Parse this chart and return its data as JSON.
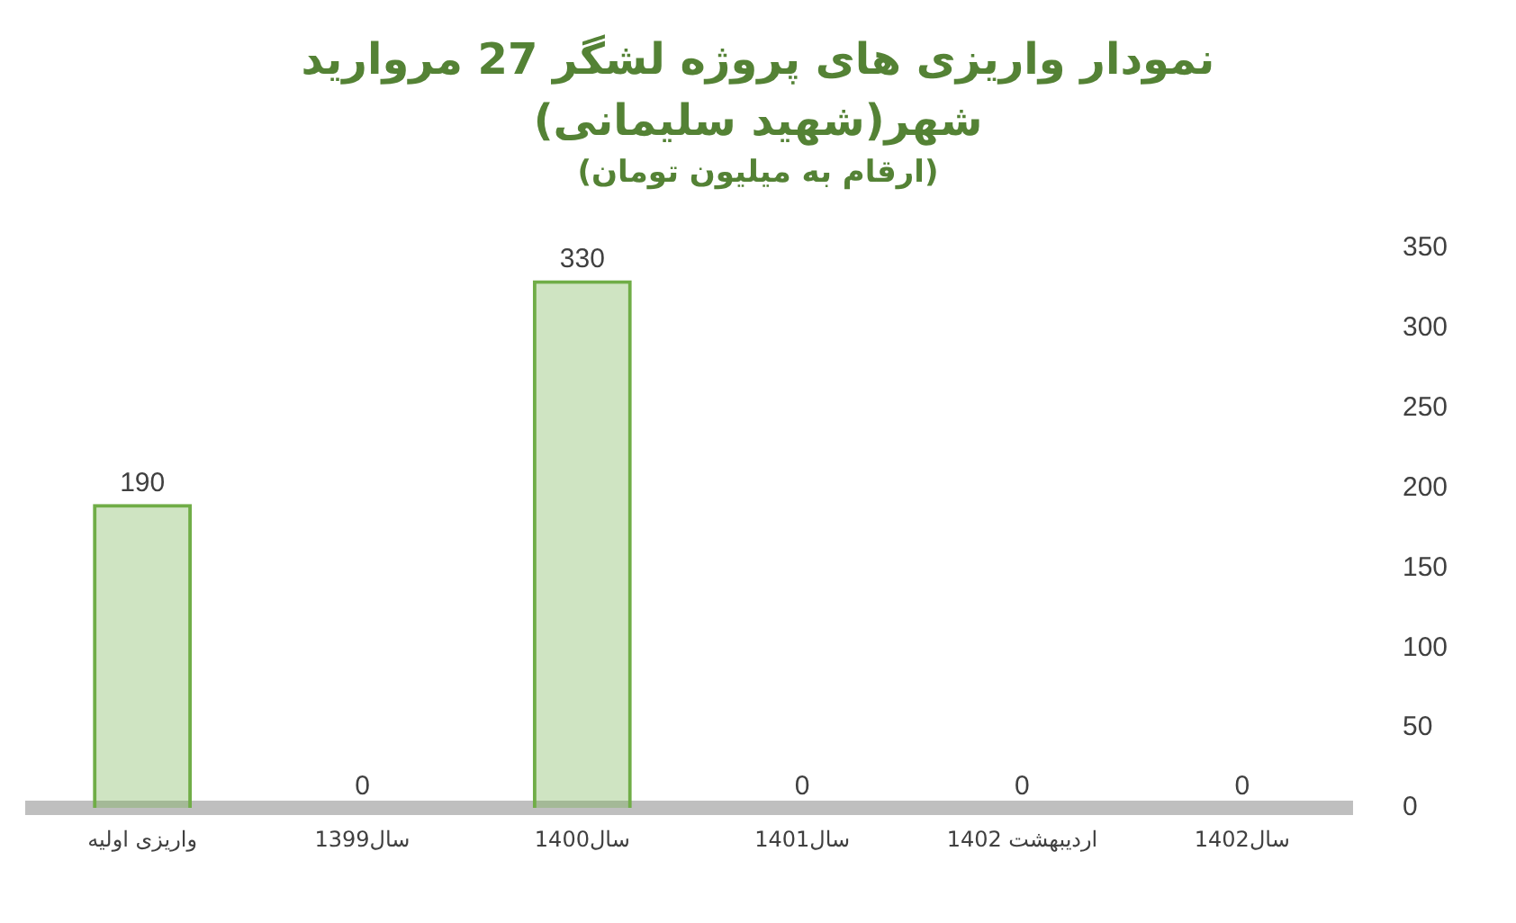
{
  "chart_data": {
    "type": "bar",
    "title": "نمودار واریزی های پروژه لشگر 27 مروارید شهر(شهید سلیمانی)",
    "subtitle": "(ارقام به میلیون تومان)",
    "categories": [
      "واریزی اولیه",
      "سال1399",
      "سال1400",
      "سال1401",
      "اردیبهشت 1402",
      "سال1402"
    ],
    "values": [
      190,
      0,
      330,
      0,
      0,
      0
    ],
    "color": "#70ad47",
    "ylim": [
      0,
      350
    ],
    "yticks": [
      0,
      50,
      100,
      150,
      200,
      250,
      300,
      350
    ],
    "grid": false,
    "data_labels": true
  }
}
